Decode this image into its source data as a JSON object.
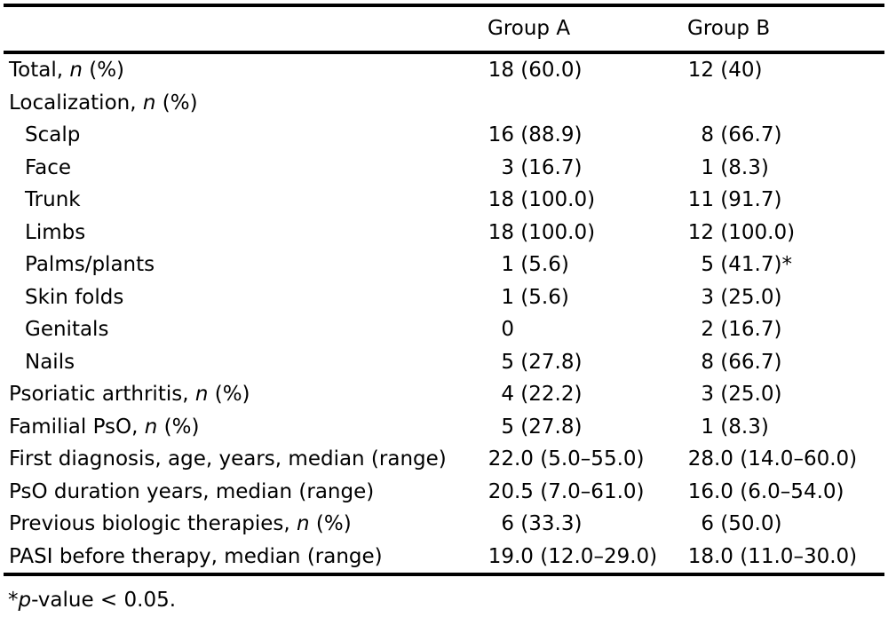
{
  "table": {
    "columns": [
      "Group A",
      "Group B"
    ],
    "rows": [
      {
        "label": {
          "pre": "Total, ",
          "it": "n",
          "post": " (%)"
        },
        "indent": false,
        "a": "18 (60.0)",
        "b": "12 (40)"
      },
      {
        "label": {
          "pre": "Localization, ",
          "it": "n",
          "post": " (%)"
        },
        "indent": false,
        "a": "",
        "b": ""
      },
      {
        "label": {
          "pre": "Scalp"
        },
        "indent": true,
        "a": "16 (88.9)",
        "b": "8 (66.7)"
      },
      {
        "label": {
          "pre": "Face"
        },
        "indent": true,
        "a": "3 (16.7)",
        "b": "1 (8.3)"
      },
      {
        "label": {
          "pre": "Trunk"
        },
        "indent": true,
        "a": "18 (100.0)",
        "b": "11 (91.7)"
      },
      {
        "label": {
          "pre": "Limbs"
        },
        "indent": true,
        "a": "18 (100.0)",
        "b": "12 (100.0)"
      },
      {
        "label": {
          "pre": "Palms/plants"
        },
        "indent": true,
        "a": "1 (5.6)",
        "b": "5 (41.7)*"
      },
      {
        "label": {
          "pre": "Skin folds"
        },
        "indent": true,
        "a": "1 (5.6)",
        "b": "3 (25.0)"
      },
      {
        "label": {
          "pre": "Genitals"
        },
        "indent": true,
        "a": "0",
        "b": "2 (16.7)"
      },
      {
        "label": {
          "pre": "Nails"
        },
        "indent": true,
        "a": "5 (27.8)",
        "b": "8 (66.7)"
      },
      {
        "label": {
          "pre": "Psoriatic arthritis, ",
          "it": "n",
          "post": " (%)"
        },
        "indent": false,
        "a": "4 (22.2)",
        "b": "3 (25.0)"
      },
      {
        "label": {
          "pre": "Familial PsO, ",
          "it": "n",
          "post": " (%)"
        },
        "indent": false,
        "a": "5 (27.8)",
        "b": "1 (8.3)"
      },
      {
        "label": {
          "pre": "First diagnosis, age, years, median (range)"
        },
        "indent": false,
        "a": "22.0 (5.0–55.0)",
        "b": "28.0 (14.0–60.0)"
      },
      {
        "label": {
          "pre": "PsO duration years, median (range)"
        },
        "indent": false,
        "a": "20.5 (7.0–61.0)",
        "b": "16.0 (6.0–54.0)"
      },
      {
        "label": {
          "pre": "Previous biologic therapies, ",
          "it": "n",
          "post": " (%)"
        },
        "indent": false,
        "a": "6 (33.3)",
        "b": "6 (50.0)"
      },
      {
        "label": {
          "pre": "PASI before therapy, median (range)"
        },
        "indent": false,
        "a": "19.0 (12.0–29.0)",
        "b": "18.0 (11.0–30.0)"
      }
    ],
    "footnote": {
      "pre": "*",
      "it": "p",
      "post": "-value < 0.05."
    }
  },
  "colors": {
    "text": "#000000",
    "rule": "#000000",
    "background": "#ffffff"
  }
}
